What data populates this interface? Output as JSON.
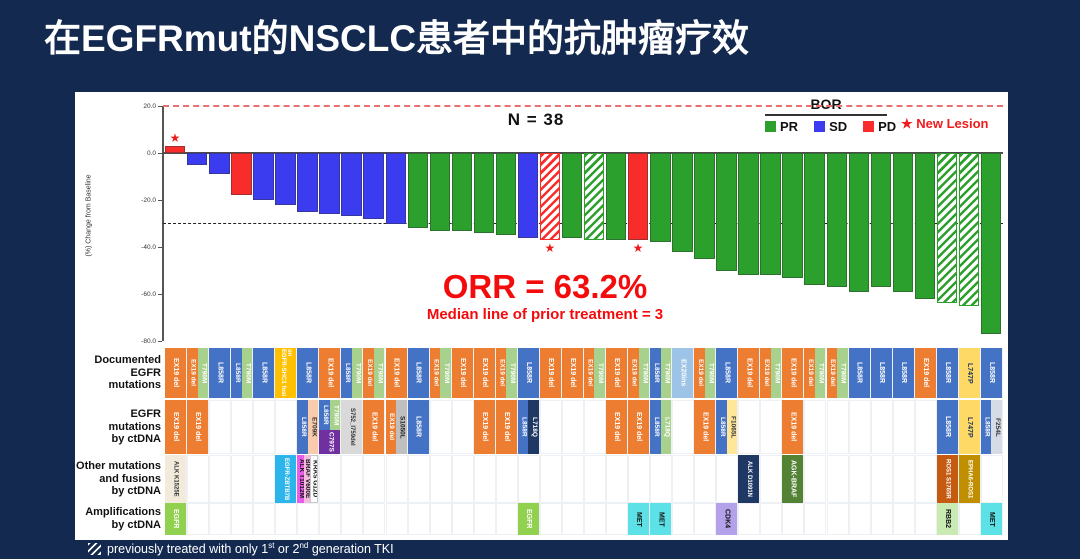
{
  "title": "在EGFRmut的NSCLC患者中的抗肿瘤疗效",
  "chart_data": {
    "type": "bar",
    "subtitle": "N = 38",
    "ylabel": "(%) Change from Baseline",
    "ylim": [
      -80,
      20
    ],
    "yticks": [
      {
        "v": 20,
        "label": "20.0"
      },
      {
        "v": 0,
        "label": "0.0"
      },
      {
        "v": -20,
        "label": "-20.0"
      },
      {
        "v": -40,
        "label": "-40.0"
      },
      {
        "v": -60,
        "label": "-60.0"
      },
      {
        "v": -80,
        "label": "-80.0"
      }
    ],
    "ref_lines": [
      {
        "v": 20,
        "color": "#E87070",
        "style": "dashed",
        "w": 2
      },
      {
        "v": -30,
        "color": "#222222",
        "style": "dashed",
        "w": 1.5
      }
    ],
    "legend": {
      "title": "BOR",
      "entries": [
        {
          "label": "PR",
          "color": "#2CA02C"
        },
        {
          "label": "SD",
          "color": "#3B3BF0"
        },
        {
          "label": "PD",
          "color": "#F92C2C"
        }
      ]
    },
    "new_lesion_label": "★ New Lesion",
    "annotations": {
      "orr": "ORR = 63.2%",
      "median": "Median line of prior treatment = 3"
    },
    "bars": [
      {
        "value": 3,
        "status": "PD",
        "star": true
      },
      {
        "value": -5,
        "status": "SD"
      },
      {
        "value": -9,
        "status": "SD"
      },
      {
        "value": -18,
        "status": "PD"
      },
      {
        "value": -20,
        "status": "SD"
      },
      {
        "value": -22,
        "status": "SD"
      },
      {
        "value": -25,
        "status": "SD"
      },
      {
        "value": -26,
        "status": "SD"
      },
      {
        "value": -27,
        "status": "SD"
      },
      {
        "value": -28,
        "status": "SD"
      },
      {
        "value": -30,
        "status": "SD"
      },
      {
        "value": -32,
        "status": "PR"
      },
      {
        "value": -33,
        "status": "PR"
      },
      {
        "value": -33,
        "status": "PR"
      },
      {
        "value": -34,
        "status": "PR"
      },
      {
        "value": -35,
        "status": "PR"
      },
      {
        "value": -36,
        "status": "SD"
      },
      {
        "value": -37,
        "status": "PD",
        "hatched": true,
        "star": true
      },
      {
        "value": -36,
        "status": "PR"
      },
      {
        "value": -37,
        "status": "PR",
        "hatched": true
      },
      {
        "value": -37,
        "status": "PR"
      },
      {
        "value": -37,
        "status": "PD",
        "star": true
      },
      {
        "value": -38,
        "status": "PR"
      },
      {
        "value": -42,
        "status": "PR"
      },
      {
        "value": -45,
        "status": "PR"
      },
      {
        "value": -50,
        "status": "PR"
      },
      {
        "value": -52,
        "status": "PR"
      },
      {
        "value": -52,
        "status": "PR"
      },
      {
        "value": -53,
        "status": "PR"
      },
      {
        "value": -56,
        "status": "PR"
      },
      {
        "value": -57,
        "status": "PR"
      },
      {
        "value": -59,
        "status": "PR"
      },
      {
        "value": -57,
        "status": "PR"
      },
      {
        "value": -59,
        "status": "PR"
      },
      {
        "value": -62,
        "status": "PR"
      },
      {
        "value": -64,
        "status": "PR",
        "hatched": true
      },
      {
        "value": -65,
        "status": "PR",
        "hatched": true
      },
      {
        "value": -77,
        "status": "PR"
      }
    ]
  },
  "palette": {
    "EX19 del": [
      "#ED7D31",
      "#ffffff"
    ],
    "T790M": [
      "#A9D18E",
      "#ffffff"
    ],
    "L858R": [
      "#4472C4",
      "#ffffff"
    ],
    "EGFR-SHC1 fusion": [
      "#FFC000",
      "#ffffff"
    ],
    "EX20ins": [
      "#9DC3E6",
      "#ffffff"
    ],
    "L747P": [
      "#FFD966",
      "#1F3864"
    ],
    "E709K": [
      "#F8CBAD",
      "#333333"
    ],
    "C797S": [
      "#7030A0",
      "#ffffff"
    ],
    "S752_I759del": [
      "#D9D9D9",
      "#333333"
    ],
    "S1050L": [
      "#BFBFBF",
      "#222222"
    ],
    "L718Q": [
      "#203864",
      "#ffffff"
    ],
    "F1065L": [
      "#FFE699",
      "#333333"
    ],
    "F254L": [
      "#D6DCE5",
      "#333333"
    ],
    "ALK K1525E": [
      "#F2EBDC",
      "#333333"
    ],
    "EGFR-ZBTB7B": [
      "#2BB5EA",
      "#ffffff"
    ],
    "ALK T1012M": [
      "#E85DE8",
      "#111111"
    ],
    "BRAF V600E": [
      "#F4BCDF",
      "#111111"
    ],
    "KRAS G12D": [
      "#FDFDFD",
      "#111111",
      "#c9c9c9"
    ],
    "ALK D1091N": [
      "#1F3864",
      "#ffffff"
    ],
    "AGK-BRAF": [
      "#548235",
      "#ffffff"
    ],
    "ROS1 S1765R": [
      "#C55A11",
      "#ffffff"
    ],
    "EPHA6-ROS1": [
      "#BF8F00",
      "#ffffff"
    ],
    "EGFR": [
      "#92D050",
      "#ffffff"
    ],
    "MET": [
      "#5CE1E6",
      "#111111"
    ],
    "CDK4": [
      "#B3A2EA",
      "#111111"
    ],
    "RBB2": [
      "#C9EBB3",
      "#111111"
    ]
  },
  "grid": {
    "rows": [
      {
        "label": "Documented\nEGFR mutations",
        "cells": [
          {
            "col": 1,
            "parts": [
              "EX19 del"
            ]
          },
          {
            "col": 2,
            "parts": [
              "EX19 del",
              "T790M"
            ]
          },
          {
            "col": 3,
            "parts": [
              "L858R"
            ]
          },
          {
            "col": 4,
            "parts": [
              "L858R",
              "T790M"
            ]
          },
          {
            "col": 5,
            "parts": [
              "L858R"
            ]
          },
          {
            "col": 6,
            "parts": [
              "EGFR-SHC1 fusion"
            ]
          },
          {
            "col": 7,
            "parts": [
              "L858R"
            ]
          },
          {
            "col": 8,
            "parts": [
              "EX19 del"
            ]
          },
          {
            "col": 9,
            "parts": [
              "L858R",
              "T790M"
            ]
          },
          {
            "col": 10,
            "parts": [
              "EX19 del",
              "T790M"
            ]
          },
          {
            "col": 11,
            "parts": [
              "EX19 del"
            ]
          },
          {
            "col": 12,
            "parts": [
              "L858R"
            ]
          },
          {
            "col": 13,
            "parts": [
              "EX19 del",
              "T790M"
            ]
          },
          {
            "col": 14,
            "parts": [
              "EX19 del"
            ]
          },
          {
            "col": 15,
            "parts": [
              "EX19 del"
            ]
          },
          {
            "col": 16,
            "parts": [
              "EX19 del",
              "T790M"
            ]
          },
          {
            "col": 17,
            "parts": [
              "L858R"
            ]
          },
          {
            "col": 18,
            "parts": [
              "EX19 del"
            ]
          },
          {
            "col": 19,
            "parts": [
              "EX19 del"
            ]
          },
          {
            "col": 20,
            "parts": [
              "EX19 del",
              "T790M"
            ]
          },
          {
            "col": 21,
            "parts": [
              "EX19 del"
            ]
          },
          {
            "col": 22,
            "parts": [
              "EX19 del",
              "T790M"
            ]
          },
          {
            "col": 23,
            "parts": [
              "L858R",
              "T790M"
            ]
          },
          {
            "col": 24,
            "parts": [
              "EX20ins"
            ]
          },
          {
            "col": 25,
            "parts": [
              "EX19 del",
              "T790M"
            ]
          },
          {
            "col": 26,
            "parts": [
              "L858R"
            ]
          },
          {
            "col": 27,
            "parts": [
              "EX19 del"
            ]
          },
          {
            "col": 28,
            "parts": [
              "EX19 del",
              "T790M"
            ]
          },
          {
            "col": 29,
            "parts": [
              "EX19 del"
            ]
          },
          {
            "col": 30,
            "parts": [
              "EX19 del",
              "T790M"
            ]
          },
          {
            "col": 31,
            "parts": [
              "EX19 del",
              "T790M"
            ]
          },
          {
            "col": 32,
            "parts": [
              "L858R"
            ]
          },
          {
            "col": 33,
            "parts": [
              "L858R"
            ]
          },
          {
            "col": 34,
            "parts": [
              "L858R"
            ]
          },
          {
            "col": 35,
            "parts": [
              "EX19 del"
            ]
          },
          {
            "col": 36,
            "parts": [
              "L858R"
            ]
          },
          {
            "col": 37,
            "parts": [
              "L747P"
            ]
          },
          {
            "col": 38,
            "parts": [
              "L858R"
            ]
          }
        ]
      },
      {
        "label": "EGFR mutations\nby ctDNA",
        "cells": [
          {
            "col": 1,
            "parts": [
              "EX19 del"
            ]
          },
          {
            "col": 2,
            "parts": [
              "EX19 del"
            ]
          },
          {
            "col": 7,
            "parts": [
              "L858R",
              "E709K"
            ]
          },
          {
            "col": 8,
            "parts": [
              "L858R",
              "T790M"
            ],
            "bottom": "C797S"
          },
          {
            "col": 9,
            "parts": [
              "S752_I759del"
            ]
          },
          {
            "col": 10,
            "parts": [
              "EX19 del"
            ]
          },
          {
            "col": 11,
            "parts": [
              "EX19 del",
              "S1050L"
            ]
          },
          {
            "col": 12,
            "parts": [
              "L858R"
            ]
          },
          {
            "col": 15,
            "parts": [
              "EX19 del"
            ]
          },
          {
            "col": 16,
            "parts": [
              "EX19 del"
            ]
          },
          {
            "col": 17,
            "parts": [
              "L858R",
              "L718Q"
            ]
          },
          {
            "col": 21,
            "parts": [
              "EX19 del"
            ]
          },
          {
            "col": 22,
            "parts": [
              "EX19 del"
            ]
          },
          {
            "col": 23,
            "parts": [
              "L858R",
              {
                "t": "L718Q",
                "bg": "#A9D18E",
                "fg": "#ffffff"
              }
            ]
          },
          {
            "col": 25,
            "parts": [
              "EX19 del"
            ]
          },
          {
            "col": 26,
            "parts": [
              "L858R",
              "F1065L"
            ]
          },
          {
            "col": 29,
            "parts": [
              "EX19 del"
            ]
          },
          {
            "col": 36,
            "parts": [
              "L858R"
            ]
          },
          {
            "col": 37,
            "parts": [
              "L747P"
            ]
          },
          {
            "col": 38,
            "parts": [
              "L858R",
              "F254L"
            ]
          }
        ]
      },
      {
        "label": "Other mutations\nand fusions\nby ctDNA",
        "cells": [
          {
            "col": 1,
            "parts": [
              "ALK K1525E"
            ]
          },
          {
            "col": 6,
            "parts": [
              "EGFR-ZBTB7B"
            ]
          },
          {
            "col": 7,
            "parts": [
              "ALK T1012M",
              "BRAF V600E",
              "KRAS G12D"
            ]
          },
          {
            "col": 27,
            "parts": [
              "ALK D1091N"
            ]
          },
          {
            "col": 29,
            "parts": [
              "AGK-BRAF"
            ]
          },
          {
            "col": 36,
            "parts": [
              "ROS1 S1765R"
            ]
          },
          {
            "col": 37,
            "parts": [
              "EPHA6-ROS1"
            ]
          }
        ]
      },
      {
        "label": "Amplifications\nby ctDNA",
        "cells": [
          {
            "col": 1,
            "parts": [
              "EGFR"
            ]
          },
          {
            "col": 17,
            "parts": [
              "EGFR"
            ]
          },
          {
            "col": 22,
            "parts": [
              "MET"
            ]
          },
          {
            "col": 23,
            "parts": [
              "MET"
            ]
          },
          {
            "col": 26,
            "parts": [
              "CDK4"
            ]
          },
          {
            "col": 36,
            "parts": [
              "RBB2"
            ]
          },
          {
            "col": 38,
            "parts": [
              "MET"
            ]
          }
        ]
      }
    ]
  },
  "footer": {
    "segments": [
      "previously treated with only 1",
      "st",
      " or 2",
      "nd",
      " generation TKI"
    ]
  }
}
